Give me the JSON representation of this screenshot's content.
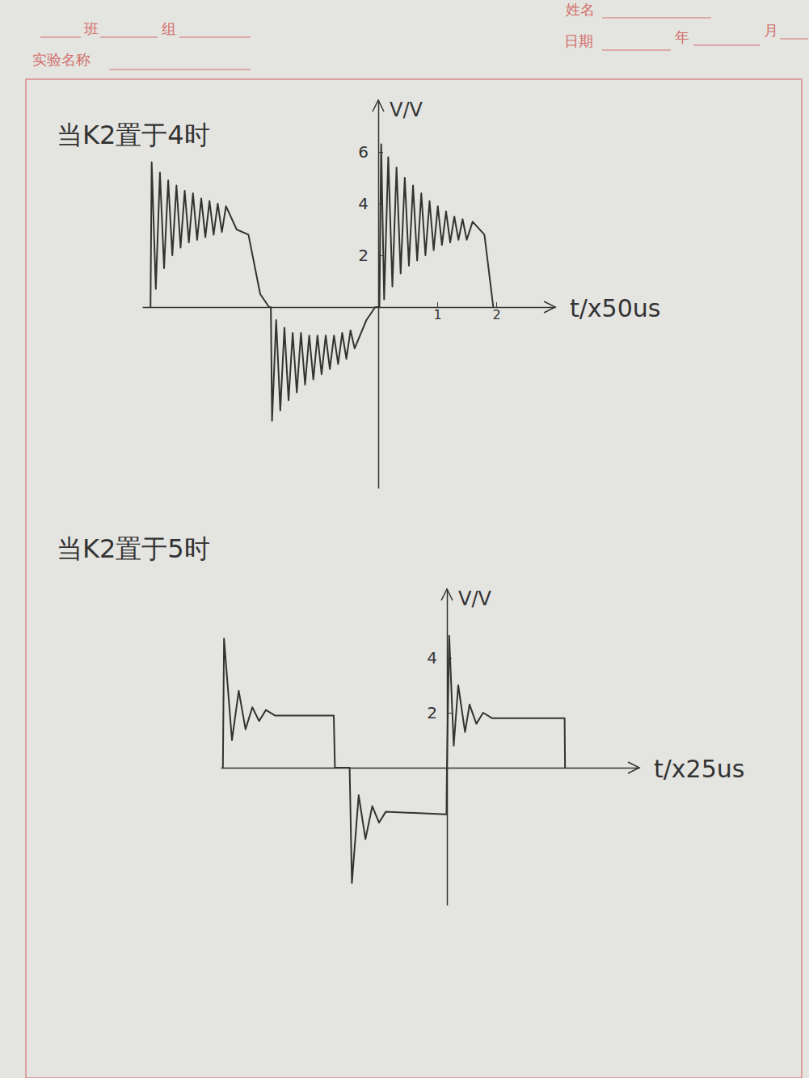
{
  "header": {
    "class": "班",
    "group": "组",
    "experiment": "实验名称",
    "name": "姓名",
    "date": "日期",
    "year": "年",
    "month": "月"
  },
  "chart_data": [
    {
      "type": "line",
      "title": "当K2置于4时",
      "y_label": "V/V",
      "x_label": "t/x50us",
      "xlim": [
        -4,
        3
      ],
      "xticks": [
        1,
        2
      ],
      "ylim": [
        -7,
        8
      ],
      "yticks": [
        2,
        4,
        6
      ],
      "color": "#333333",
      "x": [
        -3.86,
        -3.84,
        -3.77,
        -3.7,
        -3.63,
        -3.56,
        -3.49,
        -3.42,
        -3.35,
        -3.28,
        -3.21,
        -3.14,
        -3.07,
        -3.0,
        -2.93,
        -2.86,
        -2.79,
        -2.72,
        -2.65,
        -2.58,
        -2.4,
        -2.2,
        -2.0,
        -1.85,
        -1.82,
        -1.8,
        -1.73,
        -1.66,
        -1.59,
        -1.52,
        -1.45,
        -1.38,
        -1.31,
        -1.24,
        -1.17,
        -1.1,
        -1.03,
        -0.96,
        -0.89,
        -0.82,
        -0.75,
        -0.68,
        -0.61,
        -0.54,
        -0.47,
        -0.4,
        -0.2,
        -0.05,
        0.02,
        0.05,
        0.1,
        0.17,
        0.24,
        0.31,
        0.38,
        0.45,
        0.52,
        0.59,
        0.66,
        0.73,
        0.8,
        0.87,
        0.94,
        1.01,
        1.08,
        1.15,
        1.22,
        1.29,
        1.36,
        1.43,
        1.5,
        1.6,
        1.8,
        1.95
      ],
      "values": [
        0,
        5.6,
        0.7,
        5.2,
        1.5,
        4.9,
        2.0,
        4.7,
        2.3,
        4.5,
        2.5,
        4.4,
        2.6,
        4.2,
        2.7,
        4.1,
        2.8,
        4.0,
        2.9,
        3.9,
        3.0,
        2.8,
        0.5,
        0,
        0,
        -4.4,
        -0.5,
        -4.0,
        -0.8,
        -3.6,
        -1.0,
        -3.3,
        -1.0,
        -3.0,
        -1.1,
        -2.8,
        -1.1,
        -2.6,
        -1.1,
        -2.4,
        -1.1,
        -2.2,
        -1.0,
        -2.0,
        -0.9,
        -1.6,
        -0.5,
        0,
        0,
        6.3,
        0.3,
        5.8,
        0.8,
        5.4,
        1.3,
        5.0,
        1.6,
        4.7,
        1.8,
        4.4,
        2.0,
        4.1,
        2.2,
        3.9,
        2.4,
        3.7,
        2.5,
        3.5,
        2.6,
        3.4,
        2.6,
        3.3,
        2.8,
        0
      ]
    },
    {
      "type": "line",
      "title": "当K2置于5时",
      "y_label": "V/V",
      "x_label": "t/x25us",
      "xlim": [
        -10,
        8.5
      ],
      "ylim": [
        -5,
        6.5
      ],
      "yticks": [
        2,
        4
      ],
      "tick_labels": "y",
      "color": "#333333",
      "x": [
        -9.9,
        -9.85,
        -9.5,
        -9.2,
        -8.9,
        -8.6,
        -8.3,
        -8.0,
        -7.6,
        -5.0,
        -4.95,
        -4.3,
        -4.2,
        -3.9,
        -3.6,
        -3.3,
        -3.0,
        -2.7,
        -0.02,
        0.0,
        0.1,
        0.3,
        0.5,
        0.8,
        1.0,
        1.3,
        1.6,
        2.0,
        5.2,
        5.22
      ],
      "values": [
        0,
        4.7,
        1.0,
        2.8,
        1.4,
        2.2,
        1.7,
        2.1,
        1.9,
        1.9,
        0,
        0,
        -4.2,
        -1.0,
        -2.6,
        -1.4,
        -2.0,
        -1.6,
        -1.7,
        0,
        4.8,
        0.8,
        3.0,
        1.3,
        2.3,
        1.6,
        2.0,
        1.8,
        1.8,
        0
      ]
    }
  ]
}
